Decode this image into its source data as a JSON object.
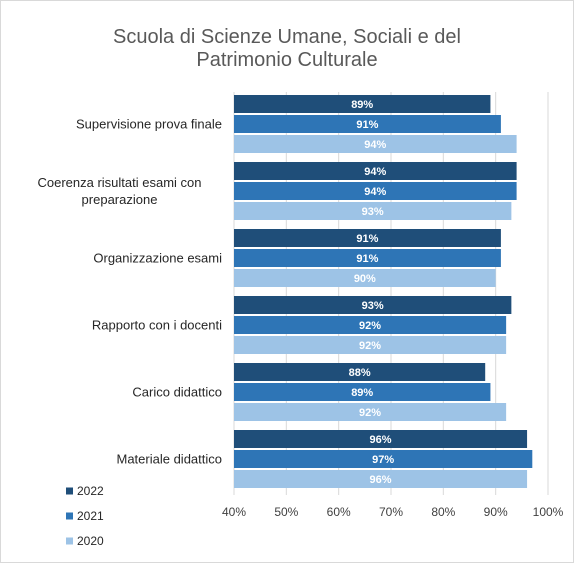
{
  "chart_data": {
    "type": "barh",
    "title": "Scuola di Scienze Umane, Sociali e del Patrimonio Culturale",
    "categories": [
      "Supervisione prova finale",
      "Coerenza risultati esami con preparazione",
      "Organizzazione esami",
      "Rapporto con i docenti",
      "Carico didattico",
      "Materiale didattico"
    ],
    "series": [
      {
        "name": "2022",
        "color": "#1f4e79",
        "values": [
          89,
          94,
          91,
          93,
          88,
          96
        ],
        "value_labels": [
          "89%",
          "94%",
          "91%",
          "93%",
          "88%",
          "96%"
        ]
      },
      {
        "name": "2021",
        "color": "#2e75b6",
        "values": [
          91,
          94,
          91,
          92,
          89,
          97
        ],
        "value_labels": [
          "91%",
          "94%",
          "91%",
          "92%",
          "89%",
          "97%"
        ]
      },
      {
        "name": "2020",
        "color": "#9dc3e6",
        "values": [
          94,
          93,
          90,
          92,
          92,
          96
        ],
        "value_labels": [
          "94%",
          "93%",
          "90%",
          "92%",
          "92%",
          "96%"
        ]
      }
    ],
    "xlim": [
      40,
      100
    ],
    "xticks": [
      {
        "value": 40,
        "label": "40%"
      },
      {
        "value": 50,
        "label": "50%"
      },
      {
        "value": 60,
        "label": "60%"
      },
      {
        "value": 70,
        "label": "70%"
      },
      {
        "value": 80,
        "label": "80%"
      },
      {
        "value": 90,
        "label": "90%"
      },
      {
        "value": 100,
        "label": "100%"
      }
    ],
    "grid": true,
    "legend": "bottom-left"
  }
}
